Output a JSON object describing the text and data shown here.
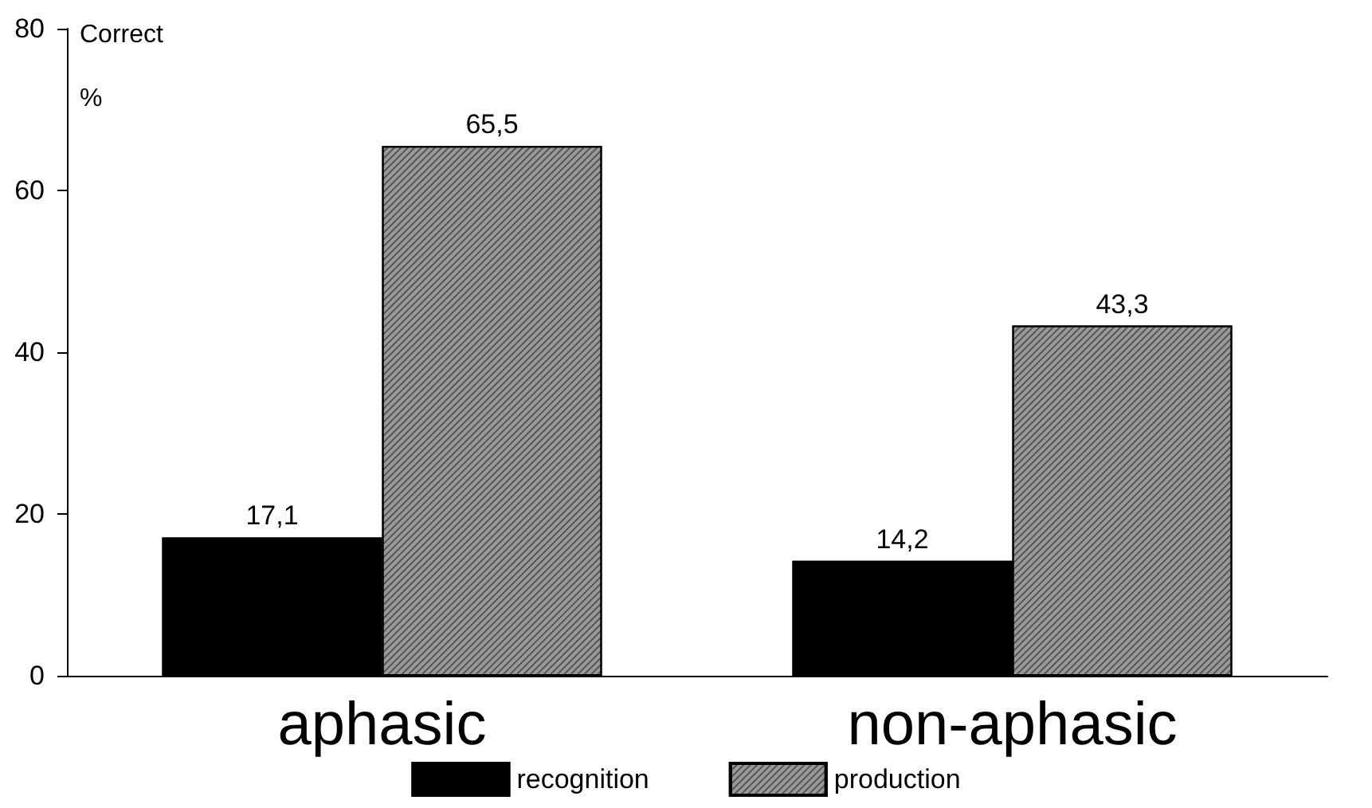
{
  "chart_data": {
    "type": "bar",
    "ylabel": "Correct\n%",
    "categories": [
      "aphasic",
      "non-aphasic"
    ],
    "series": [
      {
        "name": "recognition",
        "color": "#000000",
        "values": [
          17.1,
          14.2
        ],
        "value_labels": [
          "17,1",
          "14,2"
        ]
      },
      {
        "name": "production",
        "color": "#9a9a9a",
        "values": [
          65.5,
          43.3
        ],
        "value_labels": [
          "65,5",
          "43,3"
        ]
      }
    ],
    "ylim": [
      0,
      80
    ],
    "yticks": [
      0,
      20,
      40,
      60,
      80
    ],
    "grid": false,
    "legend": "bottom"
  }
}
